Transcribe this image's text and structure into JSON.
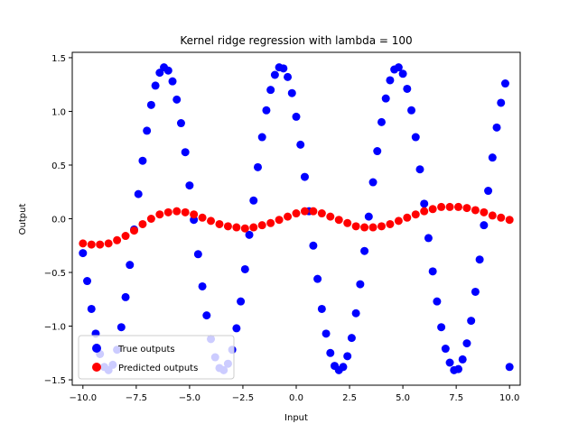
{
  "chart_data": {
    "type": "scatter",
    "title": "Kernel ridge regression with lambda = 100",
    "xlabel": "Input",
    "ylabel": "Output",
    "xlim": [
      -10.5,
      10.5
    ],
    "ylim": [
      -1.55,
      1.55
    ],
    "xticks": [
      -10.0,
      -7.5,
      -5.0,
      -2.5,
      0.0,
      2.5,
      5.0,
      7.5,
      10.0
    ],
    "xtick_labels": [
      "−10.0",
      "−7.5",
      "−5.0",
      "−2.5",
      "0.0",
      "2.5",
      "5.0",
      "7.5",
      "10.0"
    ],
    "yticks": [
      -1.5,
      -1.0,
      -0.5,
      0.0,
      0.5,
      1.0,
      1.5
    ],
    "ytick_labels": [
      "−1.5",
      "−1.0",
      "−0.5",
      "0.0",
      "0.5",
      "1.0",
      "1.5"
    ],
    "grid": false,
    "legend_position": "lower-left",
    "series": [
      {
        "name": "True outputs",
        "color": "#0000ff",
        "marker": "circle",
        "x": [
          -10.0,
          -9.8,
          -9.6,
          -9.4,
          -9.2,
          -9.0,
          -8.8,
          -8.6,
          -8.4,
          -8.2,
          -8.0,
          -7.8,
          -7.6,
          -7.4,
          -7.2,
          -7.0,
          -6.8,
          -6.6,
          -6.4,
          -6.2,
          -6.0,
          -5.8,
          -5.6,
          -5.4,
          -5.2,
          -5.0,
          -4.8,
          -4.6,
          -4.4,
          -4.2,
          -4.0,
          -3.8,
          -3.6,
          -3.4,
          -3.2,
          -3.0,
          -2.8,
          -2.6,
          -2.4,
          -2.2,
          -2.0,
          -1.8,
          -1.6,
          -1.4,
          -1.2,
          -1.0,
          -0.8,
          -0.6,
          -0.4,
          -0.2,
          0.0,
          0.2,
          0.4,
          0.6,
          0.8,
          1.0,
          1.2,
          1.4,
          1.6,
          1.8,
          2.0,
          2.2,
          2.4,
          2.6,
          2.8,
          3.0,
          3.2,
          3.4,
          3.6,
          3.8,
          4.0,
          4.2,
          4.4,
          4.6,
          4.8,
          5.0,
          5.2,
          5.4,
          5.6,
          5.8,
          6.0,
          6.2,
          6.4,
          6.6,
          6.8,
          7.0,
          7.2,
          7.4,
          7.6,
          7.8,
          8.0,
          8.2,
          8.4,
          8.6,
          8.8,
          9.0,
          9.2,
          9.4,
          9.6,
          9.8,
          10.0
        ],
        "y": [
          -0.32,
          -0.58,
          -0.84,
          -1.07,
          -1.26,
          -1.38,
          -1.41,
          -1.36,
          -1.22,
          -1.01,
          -0.73,
          -0.43,
          -0.1,
          0.23,
          0.54,
          0.82,
          1.06,
          1.24,
          1.36,
          1.41,
          1.38,
          1.28,
          1.11,
          0.89,
          0.62,
          0.31,
          -0.01,
          -0.33,
          -0.63,
          -0.9,
          -1.12,
          -1.29,
          -1.39,
          -1.41,
          -1.35,
          -1.22,
          -1.02,
          -0.77,
          -0.47,
          -0.15,
          0.17,
          0.48,
          0.76,
          1.01,
          1.2,
          1.34,
          1.41,
          1.4,
          1.32,
          1.17,
          0.95,
          0.69,
          0.39,
          0.07,
          -0.25,
          -0.56,
          -0.84,
          -1.07,
          -1.25,
          -1.37,
          -1.41,
          -1.38,
          -1.28,
          -1.11,
          -0.88,
          -0.61,
          -0.3,
          0.02,
          0.34,
          0.63,
          0.9,
          1.12,
          1.29,
          1.39,
          1.41,
          1.35,
          1.21,
          1.01,
          0.76,
          0.46,
          0.14,
          -0.18,
          -0.49,
          -0.77,
          -1.01,
          -1.21,
          -1.34,
          -1.41,
          -1.4,
          -1.31,
          -1.16,
          -0.95,
          -0.68,
          -0.38,
          -0.06,
          0.26,
          0.57,
          0.85,
          1.08,
          1.26,
          -1.38
        ]
      },
      {
        "name": "Predicted outputs",
        "color": "#ff0000",
        "marker": "circle",
        "x": [
          -10.0,
          -9.6,
          -9.2,
          -8.8,
          -8.4,
          -8.0,
          -7.6,
          -7.2,
          -6.8,
          -6.4,
          -6.0,
          -5.6,
          -5.2,
          -4.8,
          -4.4,
          -4.0,
          -3.6,
          -3.2,
          -2.8,
          -2.4,
          -2.0,
          -1.6,
          -1.2,
          -0.8,
          -0.4,
          0.0,
          0.4,
          0.8,
          1.2,
          1.6,
          2.0,
          2.4,
          2.8,
          3.2,
          3.6,
          4.0,
          4.4,
          4.8,
          5.2,
          5.6,
          6.0,
          6.4,
          6.8,
          7.2,
          7.6,
          8.0,
          8.4,
          8.8,
          9.2,
          9.6,
          10.0
        ],
        "y": [
          -0.23,
          -0.24,
          -0.24,
          -0.23,
          -0.2,
          -0.16,
          -0.11,
          -0.05,
          0.0,
          0.04,
          0.06,
          0.07,
          0.06,
          0.04,
          0.01,
          -0.02,
          -0.05,
          -0.07,
          -0.08,
          -0.09,
          -0.08,
          -0.06,
          -0.04,
          -0.01,
          0.02,
          0.05,
          0.07,
          0.07,
          0.05,
          0.02,
          -0.01,
          -0.04,
          -0.07,
          -0.08,
          -0.08,
          -0.07,
          -0.05,
          -0.02,
          0.01,
          0.04,
          0.07,
          0.09,
          0.11,
          0.11,
          0.11,
          0.1,
          0.08,
          0.06,
          0.03,
          0.01,
          -0.01
        ]
      }
    ]
  }
}
